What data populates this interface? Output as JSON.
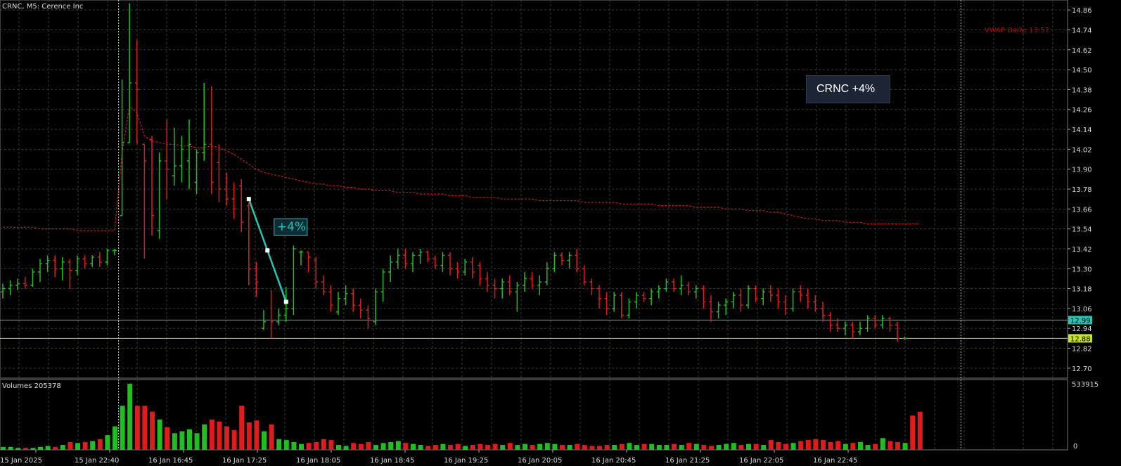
{
  "window": {
    "title": "CRNC, M5:  Cerence Inc"
  },
  "indicator": {
    "vwap_label": "VWAP Daily: 13.57"
  },
  "annotation": {
    "box_text": "CRNC +4%",
    "line_text": "+4%"
  },
  "volume_panel": {
    "label": "Volumes 205378",
    "max_label": "533915",
    "zero_label": "0"
  },
  "price_axis": {
    "ticks": [
      "14.86",
      "14.74",
      "14.62",
      "14.50",
      "14.38",
      "14.26",
      "14.14",
      "14.02",
      "13.90",
      "13.78",
      "13.66",
      "13.54",
      "13.42",
      "13.30",
      "13.18",
      "13.06",
      "12.94",
      "12.82",
      "12.70"
    ],
    "tag_cyan": "12.99",
    "tag_yellow": "12.88"
  },
  "time_axis": {
    "ticks": [
      "15 Jan 2025",
      "15 Jan 22:40",
      "16 Jan 16:45",
      "16 Jan 17:25",
      "16 Jan 18:05",
      "16 Jan 18:45",
      "16 Jan 19:25",
      "16 Jan 20:05",
      "16 Jan 20:45",
      "16 Jan 21:25",
      "16 Jan 22:05",
      "16 Jan 22:45"
    ]
  },
  "colors": {
    "up": "#1fbf1f",
    "down": "#e01b1b",
    "grid": "#3a3a3a",
    "vwap": "#d01818",
    "cyan": "#26c6b4",
    "yellow": "#c7e31f"
  },
  "chart_data": {
    "type": "candlestick",
    "symbol": "CRNC",
    "timeframe": "M5",
    "ylim": [
      12.64,
      14.92
    ],
    "bars": [
      {
        "o": 13.16,
        "h": 13.21,
        "l": 13.12,
        "c": 13.18
      },
      {
        "o": 13.18,
        "h": 13.23,
        "l": 13.14,
        "c": 13.2
      },
      {
        "o": 13.2,
        "h": 13.24,
        "l": 13.17,
        "c": 13.21
      },
      {
        "o": 13.21,
        "h": 13.25,
        "l": 13.18,
        "c": 13.2
      },
      {
        "o": 13.2,
        "h": 13.3,
        "l": 13.19,
        "c": 13.28
      },
      {
        "o": 13.28,
        "h": 13.36,
        "l": 13.22,
        "c": 13.33
      },
      {
        "o": 13.33,
        "h": 13.38,
        "l": 13.28,
        "c": 13.35
      },
      {
        "o": 13.35,
        "h": 13.38,
        "l": 13.25,
        "c": 13.3
      },
      {
        "o": 13.3,
        "h": 13.37,
        "l": 13.23,
        "c": 13.34
      },
      {
        "o": 13.34,
        "h": 13.36,
        "l": 13.18,
        "c": 13.29
      },
      {
        "o": 13.29,
        "h": 13.38,
        "l": 13.26,
        "c": 13.36
      },
      {
        "o": 13.36,
        "h": 13.38,
        "l": 13.3,
        "c": 13.33
      },
      {
        "o": 13.33,
        "h": 13.38,
        "l": 13.31,
        "c": 13.37
      },
      {
        "o": 13.37,
        "h": 13.4,
        "l": 13.31,
        "c": 13.34
      },
      {
        "o": 13.34,
        "h": 13.42,
        "l": 13.32,
        "c": 13.41
      },
      {
        "o": 13.41,
        "h": 13.42,
        "l": 13.38,
        "c": 13.41
      },
      {
        "o": 13.62,
        "h": 14.44,
        "l": 13.62,
        "c": 14.06
      },
      {
        "o": 14.06,
        "h": 14.9,
        "l": 14.06,
        "c": 14.42
      },
      {
        "o": 14.42,
        "h": 14.68,
        "l": 14.05,
        "c": 14.38
      },
      {
        "o": 14.05,
        "h": 14.05,
        "l": 13.36,
        "c": 13.95
      },
      {
        "o": 14.08,
        "h": 14.1,
        "l": 13.5,
        "c": 13.62
      },
      {
        "o": 13.53,
        "h": 14.0,
        "l": 13.48,
        "c": 13.95
      },
      {
        "o": 13.95,
        "h": 14.2,
        "l": 13.72,
        "c": 13.9
      },
      {
        "o": 13.86,
        "h": 14.15,
        "l": 13.8,
        "c": 13.92
      },
      {
        "o": 13.92,
        "h": 14.1,
        "l": 13.82,
        "c": 14.02
      },
      {
        "o": 13.95,
        "h": 14.2,
        "l": 13.78,
        "c": 14.05
      },
      {
        "o": 13.82,
        "h": 14.02,
        "l": 13.75,
        "c": 14.0
      },
      {
        "o": 14.0,
        "h": 14.42,
        "l": 13.95,
        "c": 14.05
      },
      {
        "o": 14.05,
        "h": 14.4,
        "l": 13.75,
        "c": 13.82
      },
      {
        "o": 13.94,
        "h": 14.05,
        "l": 13.7,
        "c": 13.78
      },
      {
        "o": 13.78,
        "h": 13.88,
        "l": 13.68,
        "c": 13.72
      },
      {
        "o": 13.72,
        "h": 13.82,
        "l": 13.6,
        "c": 13.66
      },
      {
        "o": 13.8,
        "h": 13.84,
        "l": 13.52,
        "c": 13.58
      },
      {
        "o": 13.68,
        "h": 13.7,
        "l": 13.2,
        "c": 13.3
      },
      {
        "o": 13.3,
        "h": 13.34,
        "l": 13.13,
        "c": 13.22
      },
      {
        "o": 12.94,
        "h": 13.05,
        "l": 12.93,
        "c": 12.98
      },
      {
        "o": 12.99,
        "h": 13.17,
        "l": 12.88,
        "c": 12.98
      },
      {
        "o": 12.98,
        "h": 13.06,
        "l": 12.96,
        "c": 13.02
      },
      {
        "o": 13.02,
        "h": 13.19,
        "l": 12.98,
        "c": 13.06
      },
      {
        "o": 13.06,
        "h": 13.44,
        "l": 13.02,
        "c": 13.42
      },
      {
        "o": 13.4,
        "h": 13.41,
        "l": 13.32,
        "c": 13.4
      },
      {
        "o": 13.4,
        "h": 13.4,
        "l": 13.28,
        "c": 13.37
      },
      {
        "o": 13.35,
        "h": 13.37,
        "l": 13.18,
        "c": 13.22
      },
      {
        "o": 13.22,
        "h": 13.26,
        "l": 13.14,
        "c": 13.16
      },
      {
        "o": 13.16,
        "h": 13.2,
        "l": 13.04,
        "c": 13.08
      },
      {
        "o": 13.04,
        "h": 13.16,
        "l": 13.02,
        "c": 13.12
      },
      {
        "o": 13.12,
        "h": 13.2,
        "l": 13.08,
        "c": 13.15
      },
      {
        "o": 13.15,
        "h": 13.18,
        "l": 13.04,
        "c": 13.08
      },
      {
        "o": 13.08,
        "h": 13.12,
        "l": 13.0,
        "c": 13.05
      },
      {
        "o": 13.05,
        "h": 13.08,
        "l": 12.94,
        "c": 13.0
      },
      {
        "o": 12.98,
        "h": 13.18,
        "l": 12.96,
        "c": 13.16
      },
      {
        "o": 13.16,
        "h": 13.3,
        "l": 13.1,
        "c": 13.28
      },
      {
        "o": 13.28,
        "h": 13.38,
        "l": 13.22,
        "c": 13.34
      },
      {
        "o": 13.34,
        "h": 13.42,
        "l": 13.3,
        "c": 13.38
      },
      {
        "o": 13.38,
        "h": 13.42,
        "l": 13.3,
        "c": 13.33
      },
      {
        "o": 13.33,
        "h": 13.4,
        "l": 13.28,
        "c": 13.38
      },
      {
        "o": 13.38,
        "h": 13.42,
        "l": 13.33,
        "c": 13.4
      },
      {
        "o": 13.4,
        "h": 13.41,
        "l": 13.34,
        "c": 13.36
      },
      {
        "o": 13.36,
        "h": 13.38,
        "l": 13.3,
        "c": 13.32
      },
      {
        "o": 13.32,
        "h": 13.4,
        "l": 13.28,
        "c": 13.38
      },
      {
        "o": 13.38,
        "h": 13.4,
        "l": 13.26,
        "c": 13.3
      },
      {
        "o": 13.3,
        "h": 13.34,
        "l": 13.24,
        "c": 13.28
      },
      {
        "o": 13.28,
        "h": 13.36,
        "l": 13.26,
        "c": 13.34
      },
      {
        "o": 13.34,
        "h": 13.37,
        "l": 13.24,
        "c": 13.28
      },
      {
        "o": 13.32,
        "h": 13.34,
        "l": 13.2,
        "c": 13.24
      },
      {
        "o": 13.24,
        "h": 13.28,
        "l": 13.16,
        "c": 13.2
      },
      {
        "o": 13.2,
        "h": 13.24,
        "l": 13.12,
        "c": 13.18
      },
      {
        "o": 13.18,
        "h": 13.24,
        "l": 13.12,
        "c": 13.22
      },
      {
        "o": 13.22,
        "h": 13.26,
        "l": 13.14,
        "c": 13.16
      },
      {
        "o": 13.16,
        "h": 13.22,
        "l": 13.04,
        "c": 13.2
      },
      {
        "o": 13.2,
        "h": 13.28,
        "l": 13.16,
        "c": 13.24
      },
      {
        "o": 13.24,
        "h": 13.28,
        "l": 13.18,
        "c": 13.2
      },
      {
        "o": 13.2,
        "h": 13.26,
        "l": 13.14,
        "c": 13.22
      },
      {
        "o": 13.22,
        "h": 13.34,
        "l": 13.2,
        "c": 13.3
      },
      {
        "o": 13.3,
        "h": 13.4,
        "l": 13.28,
        "c": 13.38
      },
      {
        "o": 13.38,
        "h": 13.4,
        "l": 13.32,
        "c": 13.35
      },
      {
        "o": 13.35,
        "h": 13.4,
        "l": 13.3,
        "c": 13.38
      },
      {
        "o": 13.38,
        "h": 13.42,
        "l": 13.28,
        "c": 13.3
      },
      {
        "o": 13.3,
        "h": 13.32,
        "l": 13.2,
        "c": 13.22
      },
      {
        "o": 13.22,
        "h": 13.24,
        "l": 13.14,
        "c": 13.18
      },
      {
        "o": 13.18,
        "h": 13.2,
        "l": 13.06,
        "c": 13.12
      },
      {
        "o": 13.12,
        "h": 13.16,
        "l": 13.02,
        "c": 13.06
      },
      {
        "o": 13.06,
        "h": 13.16,
        "l": 13.04,
        "c": 13.14
      },
      {
        "o": 13.14,
        "h": 13.16,
        "l": 13.0,
        "c": 13.02
      },
      {
        "o": 13.02,
        "h": 13.12,
        "l": 13.0,
        "c": 13.1
      },
      {
        "o": 13.1,
        "h": 13.16,
        "l": 13.06,
        "c": 13.14
      },
      {
        "o": 13.14,
        "h": 13.16,
        "l": 13.1,
        "c": 13.12
      },
      {
        "o": 13.12,
        "h": 13.18,
        "l": 13.08,
        "c": 13.16
      },
      {
        "o": 13.16,
        "h": 13.2,
        "l": 13.12,
        "c": 13.18
      },
      {
        "o": 13.18,
        "h": 13.24,
        "l": 13.16,
        "c": 13.22
      },
      {
        "o": 13.22,
        "h": 13.24,
        "l": 13.16,
        "c": 13.18
      },
      {
        "o": 13.18,
        "h": 13.26,
        "l": 13.14,
        "c": 13.2
      },
      {
        "o": 13.2,
        "h": 13.22,
        "l": 13.14,
        "c": 13.16
      },
      {
        "o": 13.16,
        "h": 13.2,
        "l": 13.12,
        "c": 13.18
      },
      {
        "o": 13.18,
        "h": 13.2,
        "l": 13.06,
        "c": 13.1
      },
      {
        "o": 13.1,
        "h": 13.14,
        "l": 12.98,
        "c": 13.04
      },
      {
        "o": 13.04,
        "h": 13.1,
        "l": 13.0,
        "c": 13.08
      },
      {
        "o": 13.08,
        "h": 13.12,
        "l": 13.02,
        "c": 13.1
      },
      {
        "o": 13.1,
        "h": 13.16,
        "l": 13.06,
        "c": 13.14
      },
      {
        "o": 13.14,
        "h": 13.18,
        "l": 13.04,
        "c": 13.08
      },
      {
        "o": 13.08,
        "h": 13.2,
        "l": 13.06,
        "c": 13.18
      },
      {
        "o": 13.18,
        "h": 13.2,
        "l": 13.1,
        "c": 13.12
      },
      {
        "o": 13.12,
        "h": 13.18,
        "l": 13.08,
        "c": 13.16
      },
      {
        "o": 13.16,
        "h": 13.2,
        "l": 13.1,
        "c": 13.14
      },
      {
        "o": 13.14,
        "h": 13.18,
        "l": 13.06,
        "c": 13.1
      },
      {
        "o": 13.1,
        "h": 13.14,
        "l": 13.02,
        "c": 13.06
      },
      {
        "o": 13.06,
        "h": 13.18,
        "l": 13.04,
        "c": 13.16
      },
      {
        "o": 13.16,
        "h": 13.2,
        "l": 13.1,
        "c": 13.14
      },
      {
        "o": 13.14,
        "h": 13.18,
        "l": 13.06,
        "c": 13.1
      },
      {
        "o": 13.1,
        "h": 13.14,
        "l": 13.04,
        "c": 13.06
      },
      {
        "o": 13.06,
        "h": 13.1,
        "l": 12.98,
        "c": 13.02
      },
      {
        "o": 13.02,
        "h": 13.04,
        "l": 12.92,
        "c": 12.96
      },
      {
        "o": 12.96,
        "h": 13.0,
        "l": 12.92,
        "c": 12.94
      },
      {
        "o": 12.94,
        "h": 12.98,
        "l": 12.9,
        "c": 12.96
      },
      {
        "o": 12.96,
        "h": 12.98,
        "l": 12.88,
        "c": 12.92
      },
      {
        "o": 12.92,
        "h": 12.98,
        "l": 12.9,
        "c": 12.94
      },
      {
        "o": 12.94,
        "h": 13.02,
        "l": 12.92,
        "c": 13.0
      },
      {
        "o": 13.0,
        "h": 13.02,
        "l": 12.94,
        "c": 12.96
      },
      {
        "o": 12.96,
        "h": 13.02,
        "l": 12.94,
        "c": 13.0
      },
      {
        "o": 13.0,
        "h": 13.01,
        "l": 12.92,
        "c": 12.96
      },
      {
        "o": 12.96,
        "h": 12.98,
        "l": 12.86,
        "c": 12.88
      },
      {
        "o": 12.88,
        "h": 12.89,
        "l": 12.87,
        "c": 12.88
      }
    ],
    "volumes": [
      6,
      6,
      4,
      4,
      4,
      6,
      8,
      6,
      10,
      16,
      14,
      16,
      18,
      22,
      30,
      48,
      90,
      135,
      90,
      90,
      78,
      62,
      46,
      34,
      38,
      42,
      34,
      52,
      62,
      58,
      48,
      40,
      90,
      56,
      60,
      38,
      52,
      22,
      20,
      16,
      12,
      14,
      16,
      22,
      20,
      10,
      8,
      14,
      12,
      16,
      10,
      14,
      16,
      18,
      14,
      12,
      10,
      8,
      10,
      12,
      10,
      12,
      8,
      10,
      12,
      10,
      12,
      10,
      14,
      10,
      12,
      10,
      12,
      14,
      12,
      10,
      10,
      12,
      10,
      8,
      8,
      10,
      10,
      12,
      14,
      10,
      12,
      12,
      10,
      10,
      12,
      10,
      14,
      12,
      10,
      8,
      10,
      12,
      14,
      10,
      12,
      12,
      10,
      20,
      16,
      12,
      14,
      18,
      20,
      22,
      20,
      16,
      18,
      12,
      14,
      16,
      10,
      12,
      24,
      18,
      16,
      14,
      70,
      78
    ],
    "vwap": [
      13.55,
      13.55,
      13.55,
      13.55,
      13.55,
      13.54,
      13.54,
      13.54,
      13.54,
      13.54,
      13.53,
      13.53,
      13.53,
      13.53,
      13.53,
      13.53,
      14.0,
      14.28,
      14.24,
      14.1,
      14.07,
      14.06,
      14.05,
      14.05,
      14.04,
      14.04,
      14.03,
      14.03,
      14.04,
      14.03,
      14.01,
      13.99,
      13.96,
      13.93,
      13.9,
      13.88,
      13.87,
      13.86,
      13.85,
      13.84,
      13.83,
      13.82,
      13.81,
      13.81,
      13.8,
      13.8,
      13.79,
      13.79,
      13.78,
      13.78,
      13.77,
      13.77,
      13.77,
      13.76,
      13.76,
      13.76,
      13.75,
      13.75,
      13.75,
      13.75,
      13.74,
      13.74,
      13.74,
      13.73,
      13.73,
      13.73,
      13.73,
      13.72,
      13.72,
      13.72,
      13.72,
      13.72,
      13.71,
      13.71,
      13.71,
      13.71,
      13.71,
      13.71,
      13.7,
      13.7,
      13.7,
      13.7,
      13.7,
      13.69,
      13.69,
      13.69,
      13.69,
      13.69,
      13.68,
      13.68,
      13.68,
      13.68,
      13.68,
      13.67,
      13.67,
      13.67,
      13.67,
      13.66,
      13.66,
      13.66,
      13.65,
      13.65,
      13.65,
      13.64,
      13.64,
      13.63,
      13.62,
      13.61,
      13.6,
      13.6,
      13.59,
      13.59,
      13.59,
      13.58,
      13.58,
      13.58,
      13.57,
      13.57,
      13.57,
      13.57,
      13.57,
      13.57,
      13.57,
      13.57
    ],
    "horizontal_lines": [
      {
        "value": 12.99,
        "color": "cyan"
      },
      {
        "value": 12.88,
        "color": "yellow"
      }
    ],
    "annotation_line": {
      "from_bar": 33,
      "from_price": 13.72,
      "to_bar": 38,
      "to_price": 13.1,
      "label": "+4%"
    },
    "vlines_dotted": [
      16,
      129
    ],
    "volume_max": 533915
  }
}
